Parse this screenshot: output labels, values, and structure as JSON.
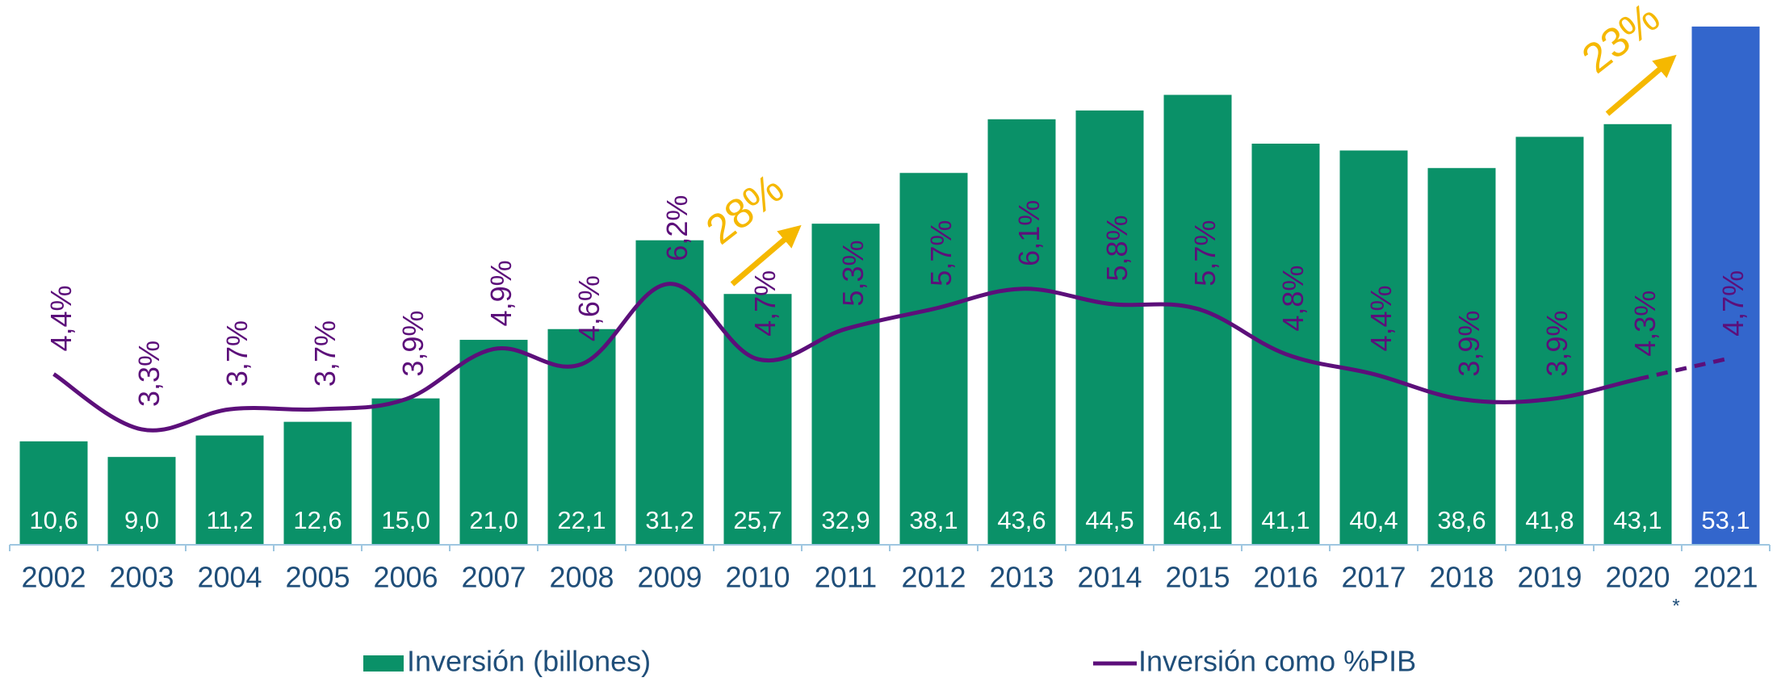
{
  "chart_data": {
    "type": "bar_line",
    "categories": [
      "2002",
      "2003",
      "2004",
      "2005",
      "2006",
      "2007",
      "2008",
      "2009",
      "2010",
      "2011",
      "2012",
      "2013",
      "2014",
      "2015",
      "2016",
      "2017",
      "2018",
      "2019",
      "2020",
      "2021"
    ],
    "ylim": [
      0,
      54
    ],
    "y2lim": [
      1,
      11.5
    ],
    "series": [
      {
        "name": "Inversión (billones)",
        "color": "#0a9168",
        "colors": [
          "#0a9168",
          "#0a9168",
          "#0a9168",
          "#0a9168",
          "#0a9168",
          "#0a9168",
          "#0a9168",
          "#0a9168",
          "#0a9168",
          "#0a9168",
          "#0a9168",
          "#0a9168",
          "#0a9168",
          "#0a9168",
          "#0a9168",
          "#0a9168",
          "#0a9168",
          "#0a9168",
          "#0a9168",
          "#3366cc"
        ],
        "values": [
          10.6,
          9.0,
          11.2,
          12.6,
          15.0,
          21.0,
          22.1,
          31.2,
          25.7,
          32.9,
          38.1,
          43.6,
          44.5,
          46.1,
          41.1,
          40.4,
          38.6,
          41.8,
          43.1,
          53.1
        ],
        "value_labels": [
          "10,6",
          "9,0",
          "11,2",
          "12,6",
          "15,0",
          "21,0",
          "22,1",
          "31,2",
          "25,7",
          "32,9",
          "38,1",
          "43,6",
          "44,5",
          "46,1",
          "41,1",
          "40,4",
          "38,6",
          "41,8",
          "43,1",
          "53,1"
        ]
      },
      {
        "name": "Inversión como %PIB",
        "color": "#5c0f7a",
        "axis": "y2",
        "values": [
          4.4,
          3.3,
          3.7,
          3.7,
          3.9,
          4.9,
          4.6,
          6.2,
          4.7,
          5.3,
          5.7,
          6.1,
          5.8,
          5.7,
          4.8,
          4.4,
          3.9,
          3.9,
          4.3,
          4.7
        ],
        "value_labels": [
          "4,4%",
          "3,3%",
          "3,7%",
          "3,7%",
          "3,9%",
          "4,9%",
          "4,6%",
          "6,2%",
          "4,7%",
          "5,3%",
          "5,7%",
          "6,1%",
          "5,8%",
          "5,7%",
          "4,8%",
          "4,4%",
          "3,9%",
          "3,9%",
          "4,3%",
          "4,7%"
        ]
      }
    ],
    "annotations": [
      "28%",
      "23%",
      "*"
    ],
    "annotation_color": "#f5b800"
  }
}
